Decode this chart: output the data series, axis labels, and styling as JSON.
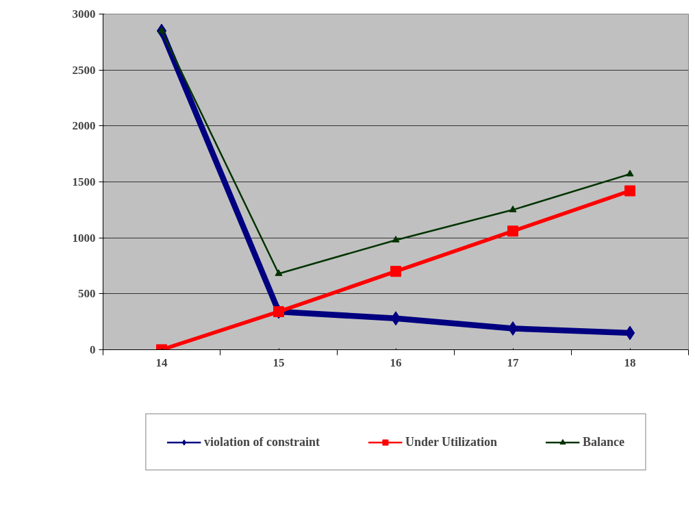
{
  "chart_data": {
    "type": "line",
    "categories": [
      "14",
      "15",
      "16",
      "17",
      "18"
    ],
    "ylim": [
      0,
      3000
    ],
    "yticks": [
      0,
      500,
      1000,
      1500,
      2000,
      2500,
      3000
    ],
    "grid": "y",
    "legend": "bottom",
    "series": [
      {
        "name": "violation of constraint",
        "color": "#000080",
        "marker": "diamond",
        "values": [
          2850,
          340,
          280,
          190,
          150
        ]
      },
      {
        "name": "Under Utilization",
        "color": "#ff0000",
        "marker": "square",
        "values": [
          0,
          340,
          700,
          1060,
          1420
        ]
      },
      {
        "name": "Balance",
        "color": "#003300",
        "marker": "triangle",
        "values": [
          2850,
          680,
          980,
          1250,
          1570
        ]
      }
    ]
  }
}
